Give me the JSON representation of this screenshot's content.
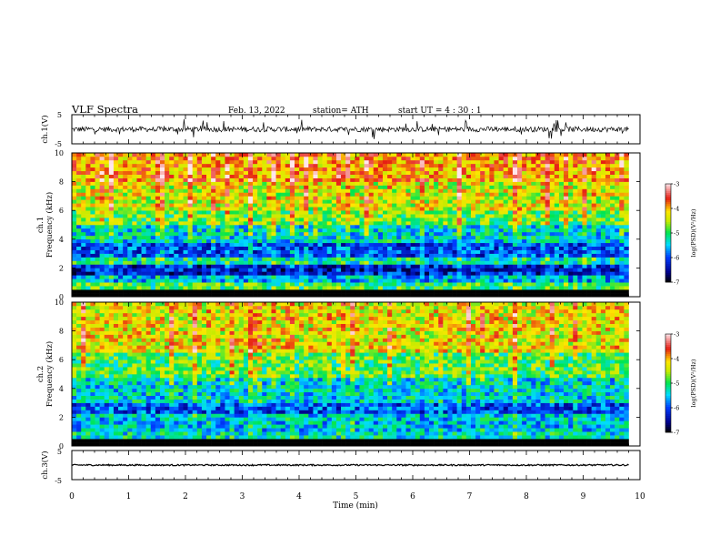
{
  "header": {
    "title": "VLF  Spectra",
    "date": "Feb. 13, 2022",
    "station": "station= ATH",
    "start": "start  UT  =   4  : 30 : 1"
  },
  "chart_data": [
    {
      "type": "line",
      "panel": "ch1-waveform",
      "ylabel": "ch.1(V)",
      "ylim": [
        -5,
        5
      ],
      "yticks": [
        "5",
        "-5"
      ],
      "xlim": [
        0,
        10
      ],
      "data_extent_min": 9.8,
      "series": [
        {
          "baseline": 0,
          "noise_amplitude_v": 0.9,
          "spike_amplitude_v": 3.5
        }
      ]
    },
    {
      "type": "heatmap",
      "panel": "ch1-spectrogram",
      "ylabel_line1": "ch.1",
      "ylabel_line2": "Frequency  (kHz)",
      "ylim": [
        0,
        10
      ],
      "yticks": [
        "0",
        "2",
        "4",
        "6",
        "8",
        "10"
      ],
      "xlim": [
        0,
        10
      ],
      "data_extent_min": 9.8,
      "colorbar": {
        "label": "log(PSD)(V²/Hz)",
        "range": [
          -7,
          -3
        ],
        "ticks": [
          "-3",
          "-4",
          "-5",
          "-6",
          "-7"
        ]
      },
      "bands": [
        {
          "f_low": 0.0,
          "f_high": 0.3,
          "log_psd": -7.0
        },
        {
          "f_low": 0.3,
          "f_high": 0.9,
          "log_psd": -5.0
        },
        {
          "f_low": 0.9,
          "f_high": 1.3,
          "log_psd": -5.6
        },
        {
          "f_low": 1.3,
          "f_high": 2.2,
          "log_psd": -6.3
        },
        {
          "f_low": 2.2,
          "f_high": 2.6,
          "log_psd": -5.2
        },
        {
          "f_low": 2.6,
          "f_high": 3.6,
          "log_psd": -6.0
        },
        {
          "f_low": 3.6,
          "f_high": 4.9,
          "log_psd": -5.4
        },
        {
          "f_low": 4.9,
          "f_high": 6.0,
          "log_psd": -4.8
        },
        {
          "f_low": 6.0,
          "f_high": 8.0,
          "log_psd": -4.4
        },
        {
          "f_low": 8.0,
          "f_high": 10.0,
          "log_psd": -4.0
        }
      ]
    },
    {
      "type": "heatmap",
      "panel": "ch2-spectrogram",
      "ylabel_line1": "ch.2",
      "ylabel_line2": "Frequency  (kHz)",
      "ylim": [
        0,
        10
      ],
      "yticks": [
        "0",
        "2",
        "4",
        "6",
        "8",
        "10"
      ],
      "xlim": [
        0,
        10
      ],
      "data_extent_min": 9.8,
      "colorbar": {
        "label": "log(PSD)(V²/Hz)",
        "range": [
          -7,
          -3
        ],
        "ticks": [
          "-3",
          "-4",
          "-5",
          "-6",
          "-7"
        ]
      },
      "bands": [
        {
          "f_low": 0.0,
          "f_high": 0.3,
          "log_psd": -7.0
        },
        {
          "f_low": 0.3,
          "f_high": 1.0,
          "log_psd": -5.3
        },
        {
          "f_low": 1.0,
          "f_high": 2.2,
          "log_psd": -5.5
        },
        {
          "f_low": 2.2,
          "f_high": 3.0,
          "log_psd": -6.0
        },
        {
          "f_low": 3.0,
          "f_high": 4.6,
          "log_psd": -5.4
        },
        {
          "f_low": 4.6,
          "f_high": 6.5,
          "log_psd": -4.9
        },
        {
          "f_low": 6.5,
          "f_high": 10.0,
          "log_psd": -4.3
        }
      ]
    },
    {
      "type": "line",
      "panel": "ch3-waveform",
      "ylabel": "ch.3(V)",
      "ylim": [
        -5,
        5
      ],
      "yticks": [
        "5",
        "-5"
      ],
      "xlim": [
        0,
        10
      ],
      "xlabel": "Time  (min)",
      "xticks": [
        "0",
        "1",
        "2",
        "3",
        "4",
        "5",
        "6",
        "7",
        "8",
        "9",
        "10"
      ],
      "data_extent_min": 9.8,
      "series": [
        {
          "baseline": 0,
          "noise_amplitude_v": 0.25
        }
      ]
    }
  ]
}
